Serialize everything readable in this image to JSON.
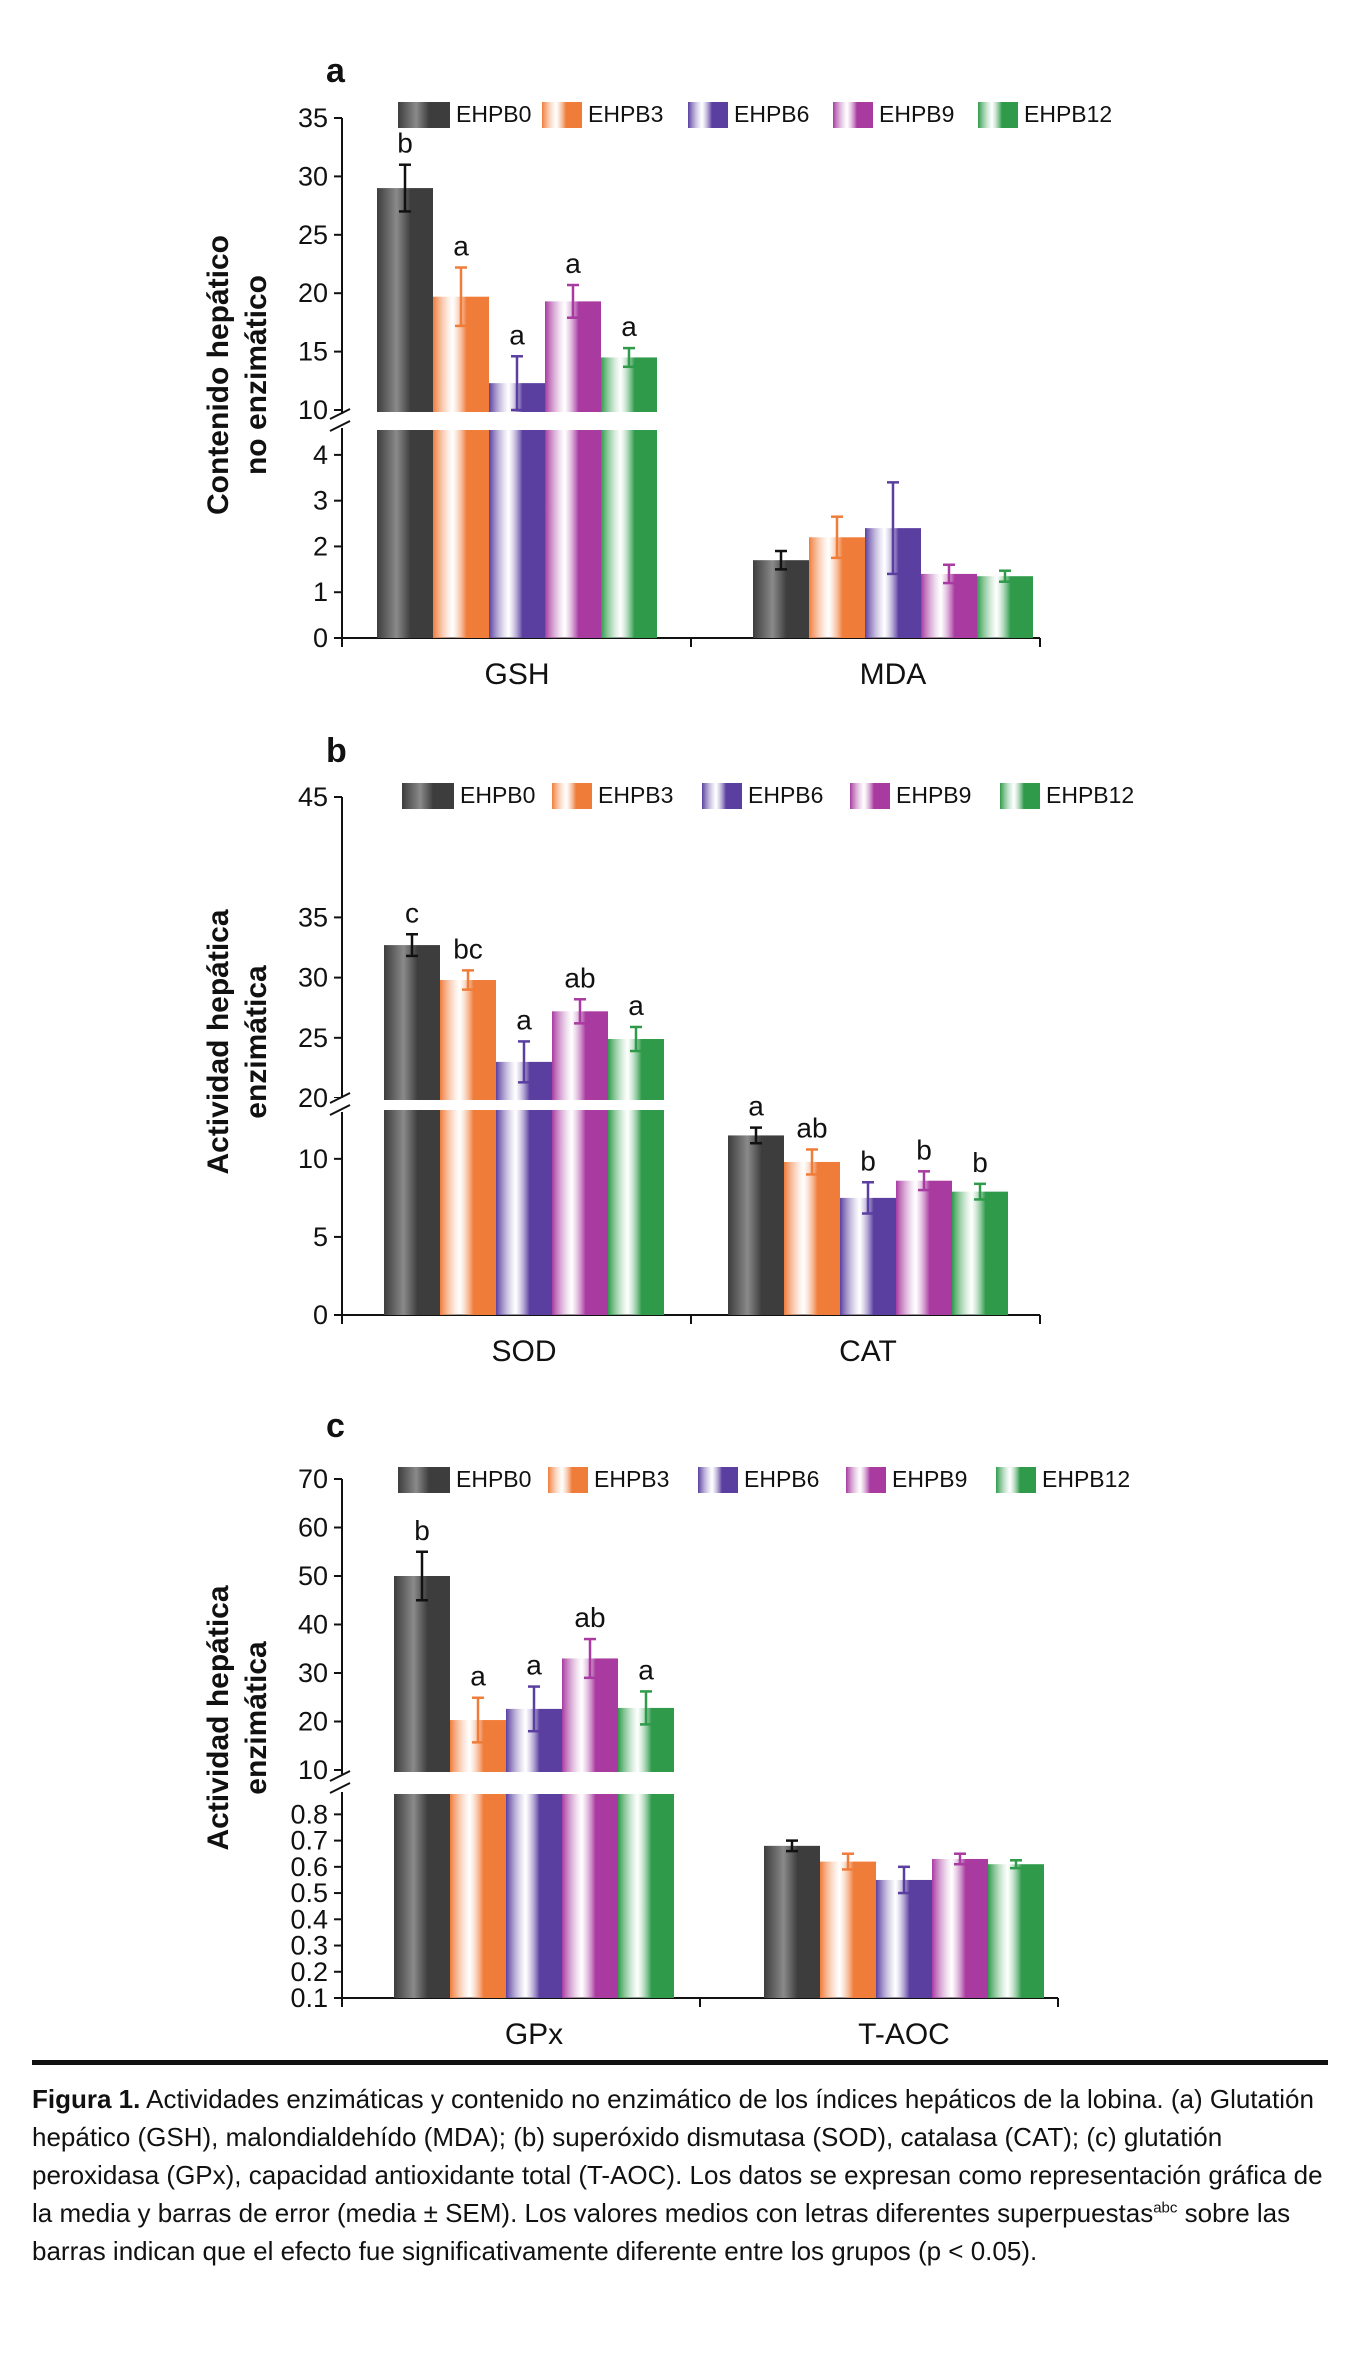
{
  "colors": {
    "EHPB0": "#3d3d3d",
    "EHPB3": "#f07c3a",
    "EHPB6": "#5a3fa0",
    "EHPB9": "#a83aa0",
    "EHPB12": "#2e9a4a"
  },
  "legend": [
    "EHPB0",
    "EHPB3",
    "EHPB6",
    "EHPB9",
    "EHPB12"
  ],
  "chart_data": [
    {
      "type": "bar",
      "panel_label": "a",
      "title": "",
      "ylabel_lines": [
        "Contenido hepático",
        "no enzimático"
      ],
      "categories": [
        "GSH",
        "MDA"
      ],
      "upper_ticks": [
        "35",
        "30",
        "25",
        "20",
        "15",
        "10"
      ],
      "lower_ticks": [
        "4",
        "3",
        "2",
        "1",
        "0"
      ],
      "upper_range": [
        10,
        35
      ],
      "lower_range": [
        0,
        4.5
      ],
      "series": [
        {
          "name": "EHPB0",
          "values": [
            29.0,
            1.7
          ],
          "errors": [
            2.0,
            0.2
          ],
          "labels": [
            "b",
            ""
          ]
        },
        {
          "name": "EHPB3",
          "values": [
            19.7,
            2.2
          ],
          "errors": [
            2.5,
            0.45
          ],
          "labels": [
            "a",
            ""
          ]
        },
        {
          "name": "EHPB6",
          "values": [
            12.3,
            2.4
          ],
          "errors": [
            2.3,
            1.0
          ],
          "labels": [
            "a",
            ""
          ]
        },
        {
          "name": "EHPB9",
          "values": [
            19.3,
            1.4
          ],
          "errors": [
            1.4,
            0.2
          ],
          "labels": [
            "a",
            ""
          ]
        },
        {
          "name": "EHPB12",
          "values": [
            14.5,
            1.35
          ],
          "errors": [
            0.8,
            0.12
          ],
          "labels": [
            "a",
            ""
          ]
        }
      ]
    },
    {
      "type": "bar",
      "panel_label": "b",
      "title": "",
      "ylabel_lines": [
        "Actividad hepática",
        "enzimática"
      ],
      "categories": [
        "SOD",
        "CAT"
      ],
      "upper_ticks": [
        "45",
        "35",
        "30",
        "25",
        "20"
      ],
      "lower_ticks": [
        "10",
        "5",
        "0"
      ],
      "upper_range": [
        20,
        45
      ],
      "lower_range": [
        0,
        13
      ],
      "series": [
        {
          "name": "EHPB0",
          "values": [
            32.7,
            11.5
          ],
          "errors": [
            0.9,
            0.5
          ],
          "labels": [
            "c",
            "a"
          ]
        },
        {
          "name": "EHPB3",
          "values": [
            29.8,
            9.8
          ],
          "errors": [
            0.8,
            0.8
          ],
          "labels": [
            "bc",
            "ab"
          ]
        },
        {
          "name": "EHPB6",
          "values": [
            23.0,
            7.5
          ],
          "errors": [
            1.7,
            1.0
          ],
          "labels": [
            "a",
            "b"
          ]
        },
        {
          "name": "EHPB9",
          "values": [
            27.2,
            8.6
          ],
          "errors": [
            1.0,
            0.6
          ],
          "labels": [
            "ab",
            "b"
          ]
        },
        {
          "name": "EHPB12",
          "values": [
            24.9,
            7.9
          ],
          "errors": [
            1.0,
            0.5
          ],
          "labels": [
            "a",
            "b"
          ]
        }
      ]
    },
    {
      "type": "bar",
      "panel_label": "c",
      "title": "",
      "ylabel_lines": [
        "Actividad hepática",
        "enzimática"
      ],
      "categories": [
        "GPx",
        "T-AOC"
      ],
      "upper_ticks": [
        "70",
        "60",
        "50",
        "40",
        "30",
        "20",
        "10"
      ],
      "lower_ticks": [
        "0.8",
        "0.7",
        "0.6",
        "0.5",
        "0.4",
        "0.3",
        "0.2",
        "0.1"
      ],
      "upper_range": [
        10,
        70
      ],
      "lower_range": [
        0.1,
        0.87
      ],
      "series": [
        {
          "name": "EHPB0",
          "values": [
            50.0,
            0.68
          ],
          "errors": [
            5.0,
            0.02
          ],
          "labels": [
            "b",
            ""
          ]
        },
        {
          "name": "EHPB3",
          "values": [
            20.3,
            0.62
          ],
          "errors": [
            4.6,
            0.03
          ],
          "labels": [
            "a",
            ""
          ]
        },
        {
          "name": "EHPB6",
          "values": [
            22.6,
            0.55
          ],
          "errors": [
            4.6,
            0.05
          ],
          "labels": [
            "a",
            ""
          ]
        },
        {
          "name": "EHPB9",
          "values": [
            33.0,
            0.63
          ],
          "errors": [
            4.0,
            0.02
          ],
          "labels": [
            "ab",
            ""
          ]
        },
        {
          "name": "EHPB12",
          "values": [
            22.8,
            0.61
          ],
          "errors": [
            3.4,
            0.015
          ],
          "labels": [
            "a",
            ""
          ]
        }
      ]
    }
  ],
  "caption": {
    "label": "Figura 1.",
    "text_main": " Actividades enzimáticas y contenido no enzimático de los índices hepáticos de la lobina. (a) Glutatión hepático (GSH), malondialdehído (MDA); (b) superóxido dismutasa (SOD), catalasa (CAT); (c) glutatión peroxidasa (GPx), capacidad antioxidante total (T-AOC). Los datos se expresan como representación gráfica de la media y barras de error (media ± SEM). Los valores medios con letras diferentes superpuestas",
    "superscript": "abc",
    "text_end": " sobre las barras indican que el efecto fue significativamente diferente entre los grupos (p < 0.05)."
  }
}
